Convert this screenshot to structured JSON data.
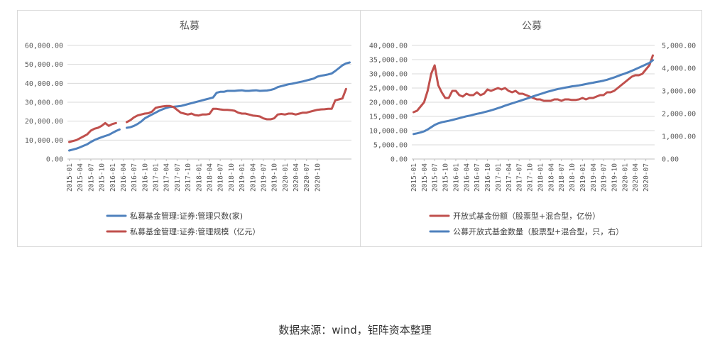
{
  "source_note": "数据来源：wind，钜阵资本整理",
  "colors": {
    "blue": "#4f81bd",
    "red": "#c0504d",
    "grid": "#d9d9d9",
    "text": "#595959"
  },
  "chart_data": [
    {
      "type": "line",
      "title": "私募",
      "ylim": [
        0,
        60000
      ],
      "yticks": [
        "0.00",
        "10,000.00",
        "20,000.00",
        "30,000.00",
        "40,000.00",
        "50,000.00",
        "60,000.00"
      ],
      "xtick_labels": [
        "2015-01",
        "2015-04",
        "2015-07",
        "2015-10",
        "2016-01",
        "2016-04",
        "2016-07",
        "2016-10",
        "2017-01",
        "2017-04",
        "2017-07",
        "2017-10",
        "2018-01",
        "2018-04",
        "2018-07",
        "2018-10",
        "2019-01",
        "2019-04",
        "2019-07",
        "2019-10",
        "2020-01",
        "2020-04",
        "2020-07",
        "2020-10"
      ],
      "x_start": "2015-01",
      "grid": true,
      "legend_position": "bottom",
      "series": [
        {
          "name": "私募基金管理:证券:管理只数(家)",
          "color": "#4f81bd",
          "values": [
            4500,
            5000,
            5500,
            6200,
            7000,
            7800,
            9000,
            10000,
            10800,
            11500,
            12200,
            12800,
            13800,
            14800,
            15600,
            null,
            16500,
            16800,
            17500,
            18500,
            19800,
            21500,
            22500,
            23500,
            24500,
            25500,
            26300,
            27000,
            27500,
            27600,
            27800,
            28000,
            28500,
            29000,
            29500,
            30000,
            30500,
            31000,
            31500,
            32000,
            32500,
            35000,
            35500,
            35500,
            36000,
            36000,
            36000,
            36200,
            36300,
            36000,
            36000,
            36200,
            36300,
            36000,
            36100,
            36200,
            36500,
            37000,
            38000,
            38500,
            39000,
            39500,
            39800,
            40200,
            40600,
            41000,
            41500,
            42000,
            42500,
            43500,
            44000,
            44300,
            44700,
            45200,
            46500,
            48000,
            49500,
            50500,
            51000
          ]
        },
        {
          "name": "私募基金管理:证券:管理规模（亿元）",
          "color": "#c0504d",
          "values": [
            9000,
            9500,
            10000,
            11000,
            12000,
            13000,
            15000,
            16000,
            16500,
            17500,
            19000,
            17500,
            18500,
            19000,
            null,
            null,
            19500,
            20500,
            22000,
            23000,
            23500,
            24000,
            24200,
            25000,
            27000,
            27500,
            27800,
            28000,
            28000,
            27500,
            26000,
            24500,
            24000,
            23500,
            24000,
            23200,
            23000,
            23500,
            23500,
            23800,
            26500,
            26500,
            26200,
            26000,
            26000,
            25800,
            25500,
            24500,
            24000,
            24000,
            23500,
            23000,
            22800,
            22500,
            21500,
            21000,
            21000,
            21500,
            23500,
            23800,
            23500,
            24000,
            24000,
            23500,
            24000,
            24500,
            24500,
            25000,
            25500,
            26000,
            26200,
            26300,
            26500,
            26500,
            31000,
            31500,
            32000,
            37000
          ]
        }
      ]
    },
    {
      "type": "line",
      "title": "公募",
      "ylim": [
        0,
        40000
      ],
      "y2lim": [
        0,
        5000
      ],
      "yticks": [
        "0.00",
        "5,000.00",
        "10,000.00",
        "15,000.00",
        "20,000.00",
        "25,000.00",
        "30,000.00",
        "35,000.00",
        "40,000.00"
      ],
      "y2ticks": [
        "0.00",
        "1,000.00",
        "2,000.00",
        "3,000.00",
        "4,000.00",
        "5,000.00"
      ],
      "xtick_labels": [
        "2015-01",
        "2015-04",
        "2015-07",
        "2015-10",
        "2016-01",
        "2016-04",
        "2016-07",
        "2016-10",
        "2017-01",
        "2017-04",
        "2017-07",
        "2017-10",
        "2018-01",
        "2018-04",
        "2018-07",
        "2018-10",
        "2019-01",
        "2019-04",
        "2019-07",
        "2019-10",
        "2020-01",
        "2020-04",
        "2020-07"
      ],
      "x_start": "2015-01",
      "grid": true,
      "legend_position": "bottom",
      "series": [
        {
          "name": "开放式基金份额（股票型+混合型，亿份）",
          "axis": "left",
          "color": "#c0504d",
          "values": [
            16500,
            17000,
            18500,
            20000,
            24000,
            30000,
            33000,
            26000,
            23500,
            21500,
            21500,
            24000,
            24000,
            22500,
            22000,
            23000,
            22500,
            22500,
            23500,
            22500,
            23000,
            24500,
            24000,
            24500,
            25000,
            24500,
            25000,
            24000,
            23500,
            24000,
            23000,
            23000,
            22500,
            22000,
            21500,
            21000,
            21000,
            20500,
            20500,
            20500,
            21000,
            21000,
            20500,
            21000,
            21000,
            20800,
            20800,
            21000,
            21500,
            21000,
            21500,
            21500,
            22000,
            22500,
            22500,
            23500,
            23500,
            24000,
            25000,
            26000,
            27000,
            28000,
            29000,
            29500,
            29500,
            30000,
            31500,
            33000,
            36500
          ]
        },
        {
          "name": "公募开放式基金数量（股票型+混合型，只，右）",
          "axis": "right",
          "color": "#4f81bd",
          "values": [
            1100,
            1130,
            1170,
            1220,
            1300,
            1400,
            1500,
            1570,
            1620,
            1650,
            1680,
            1720,
            1760,
            1800,
            1840,
            1880,
            1910,
            1950,
            1990,
            2020,
            2060,
            2100,
            2140,
            2190,
            2240,
            2290,
            2350,
            2400,
            2450,
            2500,
            2550,
            2600,
            2650,
            2700,
            2760,
            2810,
            2860,
            2910,
            2960,
            3000,
            3040,
            3080,
            3110,
            3140,
            3170,
            3200,
            3220,
            3240,
            3270,
            3300,
            3330,
            3360,
            3390,
            3420,
            3450,
            3490,
            3540,
            3590,
            3650,
            3710,
            3760,
            3820,
            3880,
            3950,
            4020,
            4090,
            4160,
            4230,
            4350
          ]
        }
      ]
    }
  ]
}
